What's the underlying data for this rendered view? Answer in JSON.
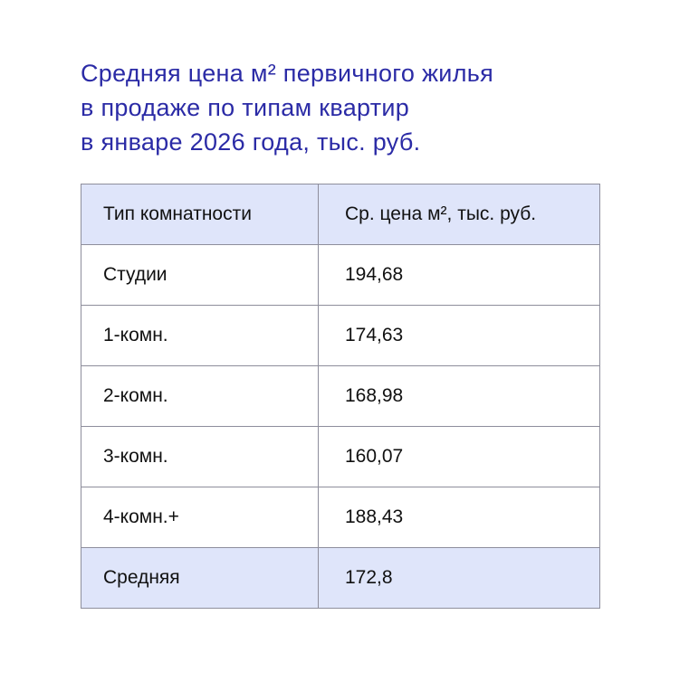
{
  "chart_data": {
    "type": "table",
    "title_lines": [
      "Средняя цена м² первичного жилья",
      "в продаже по типам квартир",
      "в январе 2026 года, тыс. руб."
    ],
    "columns": [
      "Тип комнатности",
      "Ср. цена м², тыс. руб."
    ],
    "rows": [
      [
        "Студии",
        "194,68"
      ],
      [
        "1-комн.",
        "174,63"
      ],
      [
        "2-комн.",
        "168,98"
      ],
      [
        "3-комн.",
        "160,07"
      ],
      [
        "4-комн.+",
        "188,43"
      ]
    ],
    "total": [
      "Средняя",
      "172,8"
    ],
    "colors": {
      "title": "#2b2ba6",
      "highlight_row": "#dfe5fa",
      "border": "#8e8e9c"
    }
  }
}
